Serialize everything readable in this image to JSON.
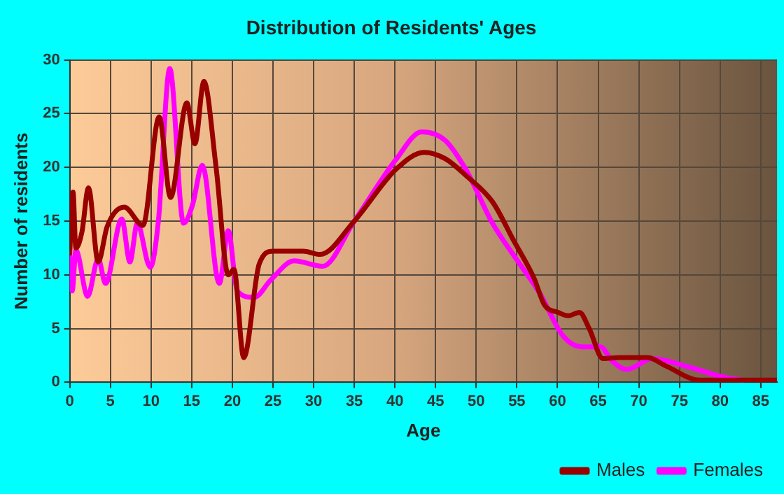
{
  "chart_data": {
    "type": "line",
    "title": "Distribution of Residents' Ages",
    "xlabel": "Age",
    "ylabel": "Number of residents",
    "xlim": [
      0,
      87
    ],
    "xticks": [
      0,
      5,
      10,
      15,
      20,
      25,
      30,
      35,
      40,
      45,
      50,
      55,
      60,
      65,
      70,
      75,
      80,
      85
    ],
    "ylim": [
      0,
      30
    ],
    "yticks": [
      0,
      5,
      10,
      15,
      20,
      25,
      30
    ],
    "grid": true,
    "legend": "bottom",
    "marker": "none",
    "line_style": "solid",
    "series": [
      {
        "name": "Males",
        "color": "#990000",
        "x": [
          0,
          0.4,
          0.75,
          1.5,
          2.3,
          3.5,
          4.6,
          6.7,
          9,
          11,
          12.4,
          14.4,
          15.4,
          16.5,
          18,
          19.5,
          20.2,
          21.4,
          23.3,
          25,
          28.7,
          30.8,
          35,
          40.1,
          43.6,
          46.2,
          48.8,
          52,
          54.6,
          57.1,
          58.4,
          60.1,
          61.3,
          62.7,
          63.9,
          65.6,
          67.6,
          71.1,
          73.4,
          77.5,
          87
        ],
        "values": [
          12,
          17.7,
          12.5,
          14,
          18.1,
          11.2,
          14.5,
          16.3,
          14.6,
          24.7,
          17.2,
          26,
          22.2,
          28,
          20,
          10,
          10.5,
          2.3,
          11,
          12.2,
          12.2,
          11.9,
          15,
          19.8,
          21.4,
          20.8,
          19.2,
          16.8,
          13.2,
          9.7,
          7.2,
          6.5,
          6.2,
          6.5,
          5,
          2.2,
          2.3,
          2.3,
          1.5,
          0.2,
          0.2
        ]
      },
      {
        "name": "Females",
        "color": "#ff00ff",
        "x": [
          0,
          0.3,
          0.75,
          2.2,
          3.5,
          4.4,
          6.4,
          7.4,
          8.3,
          9.9,
          10.9,
          12.3,
          14,
          15.1,
          16.3,
          18.4,
          19.5,
          20.6,
          22.7,
          24.7,
          27.6,
          31.1,
          35,
          40.1,
          43.3,
          46.2,
          48.8,
          52,
          54.9,
          57.8,
          60.7,
          63,
          65.3,
          66.7,
          68.5,
          71.7,
          75.8,
          80.4,
          82.7
        ],
        "values": [
          12,
          8.5,
          12.3,
          8,
          11.5,
          9.2,
          15.2,
          11.2,
          14.8,
          10.7,
          15,
          29.2,
          14.8,
          16.5,
          20.2,
          9.2,
          14.1,
          8.5,
          7.9,
          9.5,
          11.3,
          10.8,
          15,
          20.7,
          23.3,
          22.5,
          19.7,
          14.8,
          11.5,
          8.3,
          4.3,
          3.3,
          3.3,
          2,
          1.2,
          2.2,
          1.5,
          0.5,
          0.2
        ]
      }
    ]
  }
}
